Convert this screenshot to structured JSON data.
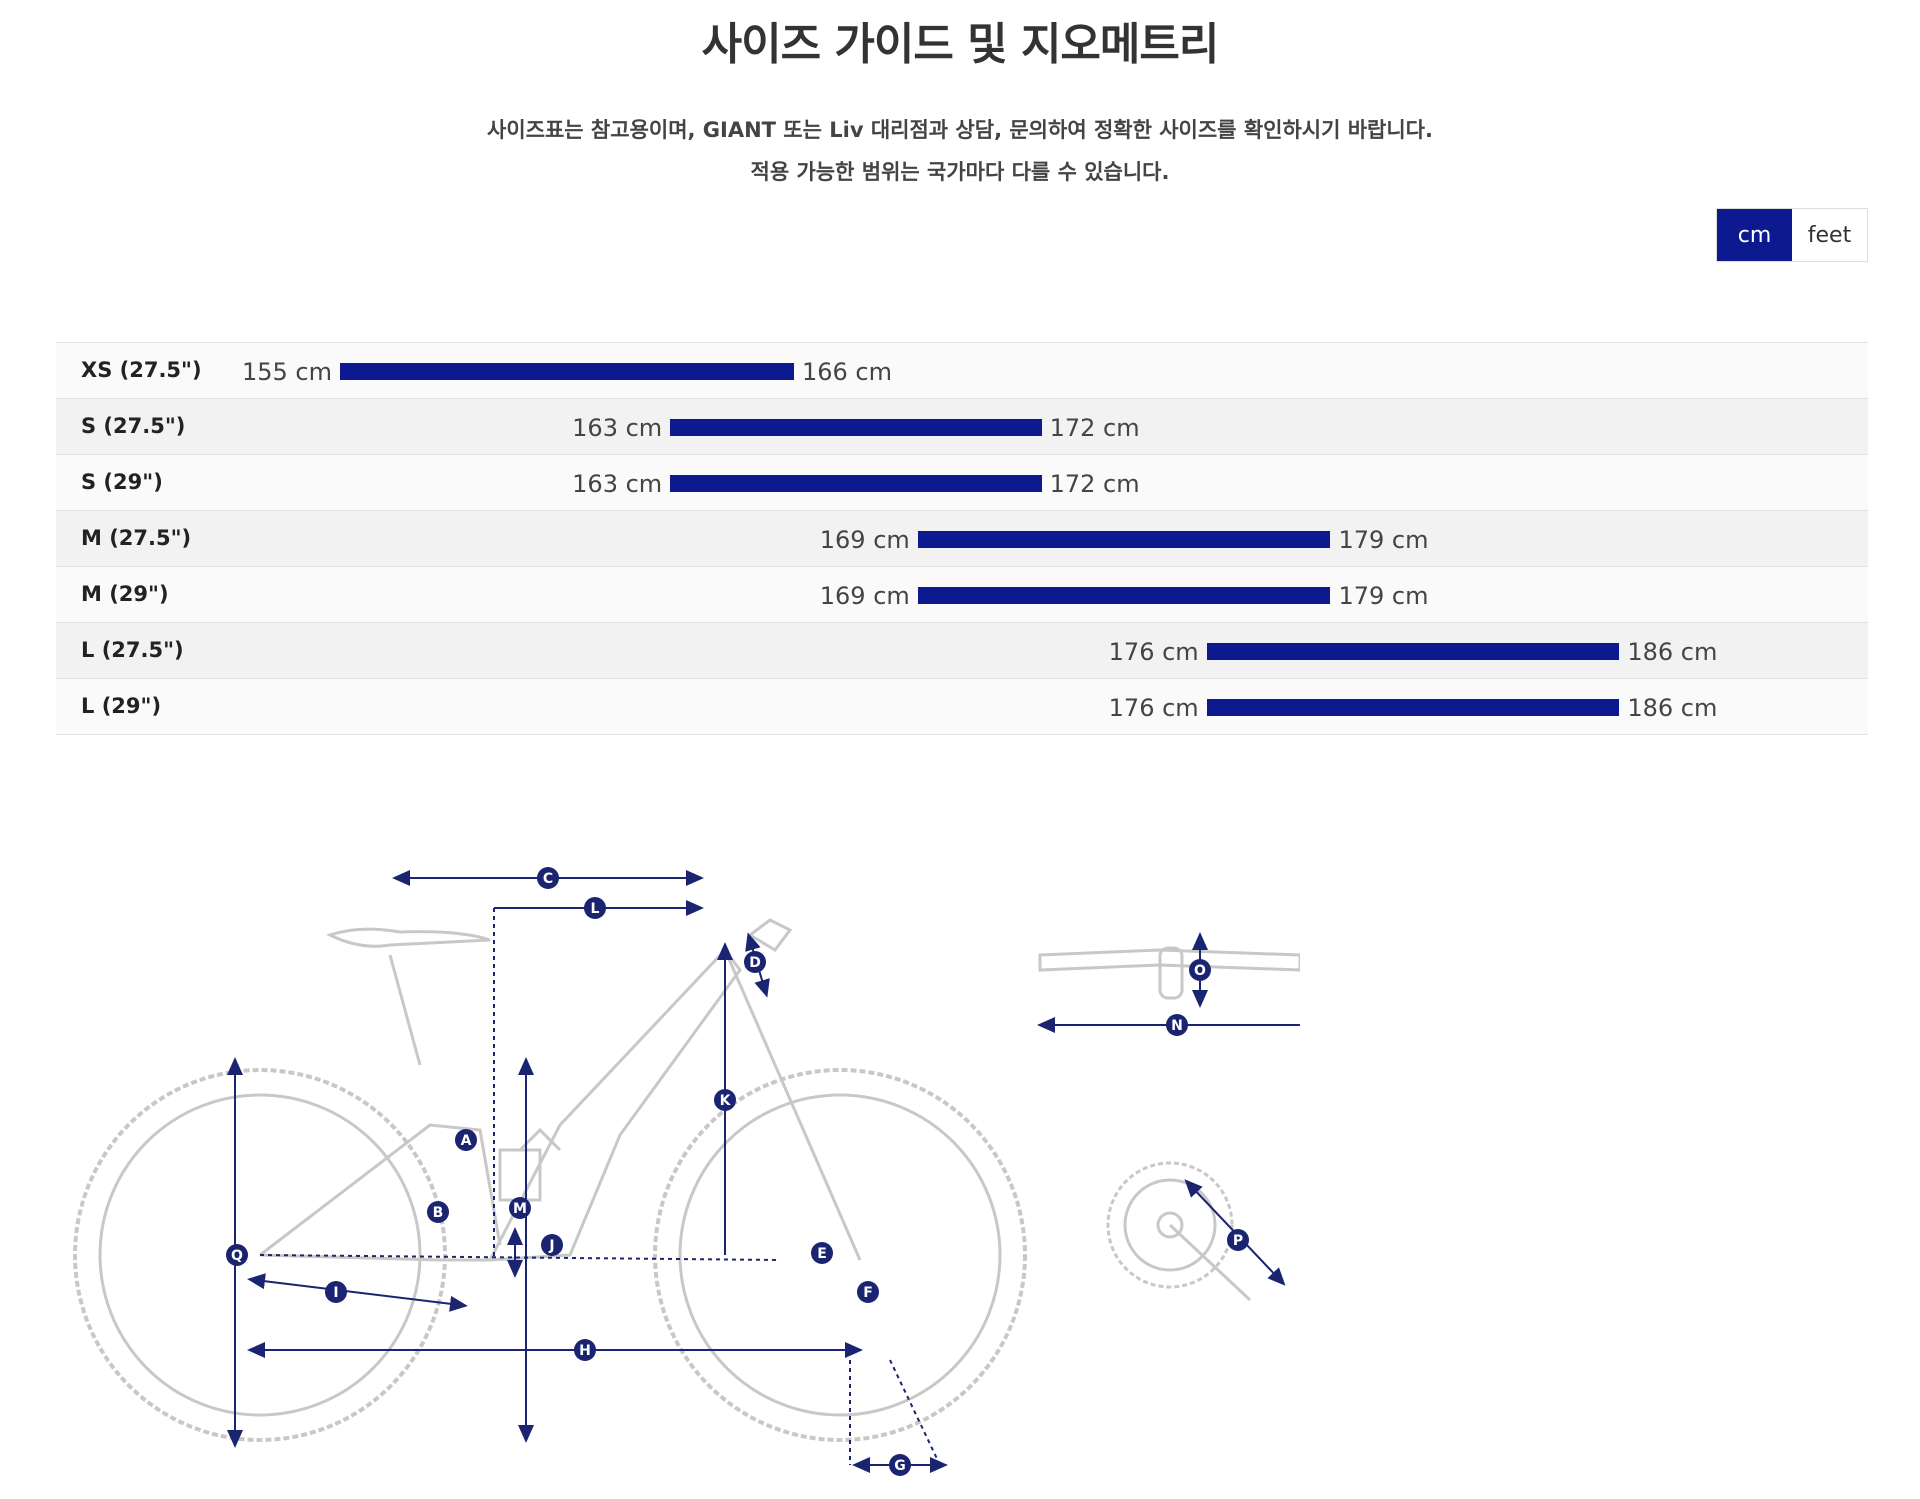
{
  "page": {
    "title": "사이즈 가이드 및 지오메트리",
    "description_line1": "사이즈표는 참고용이며, GIANT 또는 Liv 대리점과 상담, 문의하여 정확한 사이즈를 확인하시기 바랍니다.",
    "description_line2": "적용 가능한 범위는 국가마다 다를 수 있습니다."
  },
  "unit_toggle": {
    "options": [
      "cm",
      "feet"
    ],
    "selected": "cm"
  },
  "colors": {
    "accent": "#0d1a8f",
    "diagram_line": "#cfcfcf",
    "diagram_marker": "#1a2470"
  },
  "chart_data": {
    "type": "bar",
    "orientation": "horizontal-range",
    "unit": "cm",
    "categories": [
      "XS (27.5\")",
      "S (27.5\")",
      "S (29\")",
      "M (27.5\")",
      "M (29\")",
      "L (27.5\")",
      "L (29\")"
    ],
    "ranges": [
      {
        "min": 155,
        "max": 166,
        "min_label": "155 cm",
        "max_label": "166 cm"
      },
      {
        "min": 163,
        "max": 172,
        "min_label": "163 cm",
        "max_label": "172 cm"
      },
      {
        "min": 163,
        "max": 172,
        "min_label": "163 cm",
        "max_label": "172 cm"
      },
      {
        "min": 169,
        "max": 179,
        "min_label": "169 cm",
        "max_label": "179 cm"
      },
      {
        "min": 169,
        "max": 179,
        "min_label": "169 cm",
        "max_label": "179 cm"
      },
      {
        "min": 176,
        "max": 186,
        "min_label": "176 cm",
        "max_label": "186 cm"
      },
      {
        "min": 176,
        "max": 186,
        "min_label": "176 cm",
        "max_label": "186 cm"
      }
    ]
  },
  "geometry_markers": [
    "A",
    "B",
    "C",
    "D",
    "E",
    "F",
    "G",
    "H",
    "I",
    "J",
    "K",
    "L",
    "M",
    "N",
    "O",
    "P",
    "Q"
  ]
}
